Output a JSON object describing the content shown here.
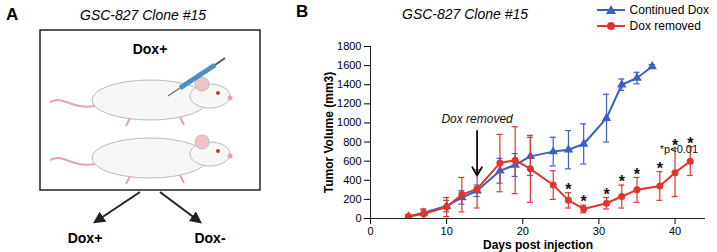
{
  "panel_labels": [
    "A",
    "B"
  ],
  "panel_a": {
    "title": "GSC-827 Clone #15",
    "box_label": "Dox+",
    "groups": [
      "Dox+",
      "Dox-"
    ]
  },
  "chart_data": {
    "type": "line",
    "title": "GSC-827 Clone #15",
    "x_label": "Days post injection",
    "y_label": "Tumor Volume (mm3)",
    "xlim": [
      0,
      44
    ],
    "xticks": [
      0,
      10,
      20,
      30,
      40
    ],
    "ylim": [
      0,
      1800
    ],
    "yticks": [
      0,
      200,
      400,
      600,
      800,
      1000,
      1200,
      1400,
      1600,
      1800
    ],
    "legend": "top-right",
    "series": [
      {
        "name": "Continued Dox",
        "color": "#3b5fc6",
        "marker": "triangle",
        "x": [
          5,
          7,
          10,
          12,
          14,
          17,
          19,
          21,
          24,
          26,
          28,
          31,
          33,
          35,
          37
        ],
        "values": [
          20,
          60,
          130,
          220,
          290,
          500,
          560,
          650,
          700,
          720,
          780,
          1050,
          1400,
          1470,
          1590
        ],
        "errors": [
          20,
          30,
          60,
          70,
          60,
          130,
          120,
          200,
          150,
          200,
          210,
          250,
          60,
          60,
          20
        ]
      },
      {
        "name": "Dox removed",
        "color": "#e0352b",
        "marker": "circle",
        "x": [
          5,
          7,
          10,
          12,
          14,
          17,
          19,
          21,
          24,
          26,
          28,
          31,
          33,
          35,
          38,
          40,
          42
        ],
        "values": [
          20,
          50,
          120,
          250,
          310,
          580,
          610,
          520,
          350,
          190,
          100,
          160,
          230,
          300,
          340,
          480,
          600
        ],
        "errors": [
          20,
          50,
          100,
          180,
          200,
          300,
          350,
          350,
          150,
          80,
          40,
          60,
          120,
          130,
          150,
          250,
          150
        ]
      }
    ],
    "annotations": [
      {
        "text": "Dox removed",
        "x": 14,
        "y": 1000,
        "arrow_to": [
          14,
          450
        ]
      },
      {
        "text": "*p<0.01",
        "x": 38,
        "y": 720
      },
      {
        "text": "*",
        "x": 26,
        "y": 300
      },
      {
        "text": "*",
        "x": 28,
        "y": 170
      },
      {
        "text": "*",
        "x": 31,
        "y": 250
      },
      {
        "text": "*",
        "x": 33,
        "y": 380
      },
      {
        "text": "*",
        "x": 35,
        "y": 460
      },
      {
        "text": "*",
        "x": 38,
        "y": 520
      },
      {
        "text": "*",
        "x": 40,
        "y": 760
      },
      {
        "text": "*",
        "x": 42,
        "y": 780
      }
    ]
  }
}
